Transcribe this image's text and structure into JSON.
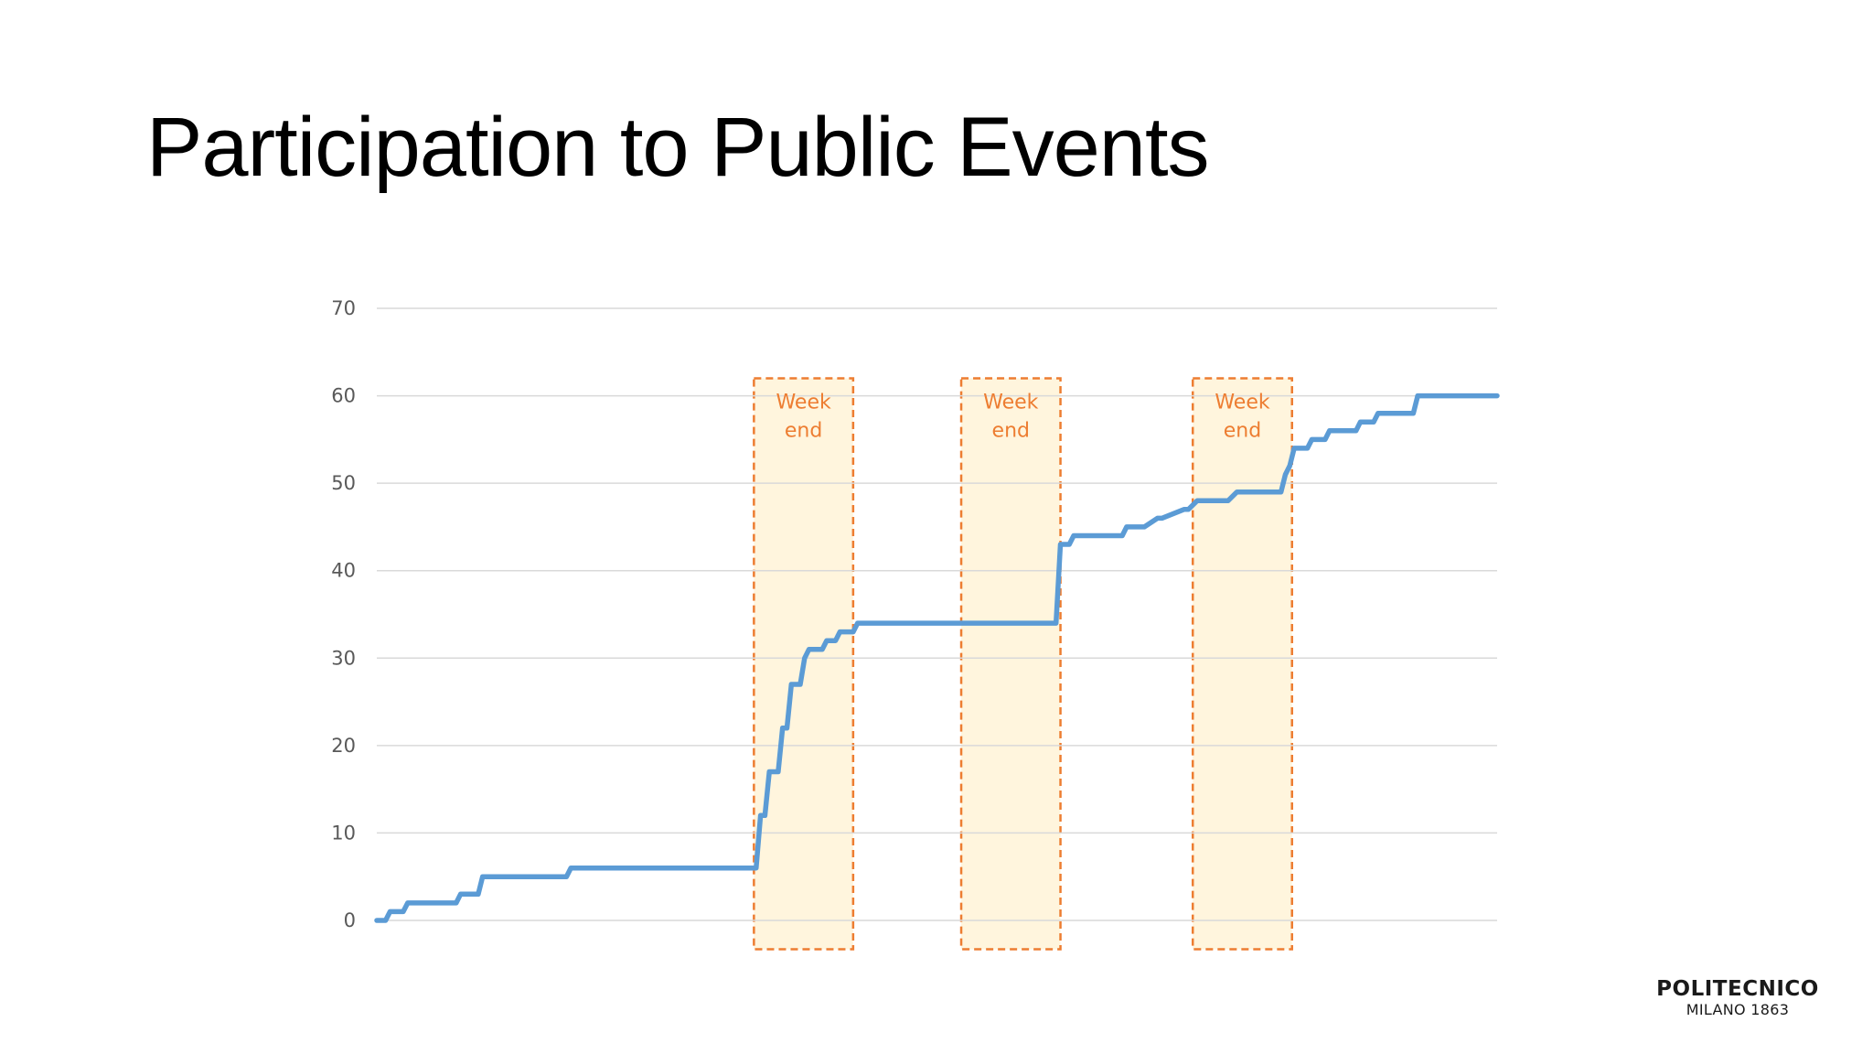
{
  "slide": {
    "title": "Participation to Public Events"
  },
  "logo": {
    "name": "POLITECNICO",
    "subtitle": "MILANO 1863"
  },
  "chart_data": {
    "type": "line",
    "title": "",
    "xlabel": "",
    "ylabel": "",
    "ylim": [
      0,
      70
    ],
    "yticks": [
      "0",
      "10",
      "20",
      "30",
      "40",
      "50",
      "60",
      "70"
    ],
    "grid": true,
    "legend": "none",
    "line_color": "#5B9BD5",
    "grid_color": "#D9D9D9",
    "band_color": "#ED7D31",
    "band_fill": "#FFF5DD",
    "xlim": [
      0,
      254
    ],
    "series": [
      {
        "x": [
          0,
          2,
          3,
          6,
          7,
          18,
          19,
          20,
          23,
          24,
          25,
          43,
          44,
          45,
          86,
          87,
          88,
          89,
          90,
          91,
          92,
          93,
          94,
          95,
          96,
          97,
          98,
          99,
          100,
          101,
          102,
          104,
          105,
          108,
          109,
          113,
          114,
          119,
          120,
          125,
          154,
          155,
          156,
          157,
          158,
          159,
          169,
          170,
          173,
          174,
          177,
          178,
          183,
          184,
          186,
          188,
          192,
          193,
          195,
          197,
          205,
          206,
          207,
          208,
          209,
          211,
          212,
          215,
          216,
          222,
          223,
          226,
          227,
          228,
          235,
          236,
          254
        ],
        "y": [
          0,
          0,
          1,
          1,
          2,
          2,
          3,
          3,
          3,
          5,
          5,
          5,
          6,
          6,
          6,
          12,
          12,
          17,
          17,
          17,
          22,
          22,
          27,
          27,
          27,
          30,
          31,
          31,
          31,
          31,
          32,
          32,
          33,
          33,
          34,
          34,
          34,
          34,
          34,
          34,
          34,
          43,
          43,
          43,
          44,
          44,
          44,
          45,
          45,
          45,
          46,
          46,
          47,
          47,
          48,
          48,
          48,
          48,
          49,
          49,
          49,
          51,
          52,
          54,
          54,
          54,
          55,
          55,
          56,
          56,
          57,
          57,
          58,
          58,
          58,
          60,
          60
        ]
      }
    ],
    "bands": [
      {
        "label_line1": "Week",
        "label_line2": "end",
        "x_start": 85.5,
        "x_end": 108,
        "y_top": 62,
        "y_bottom": -3.3
      },
      {
        "label_line1": "Week",
        "label_line2": "end",
        "x_start": 132.5,
        "x_end": 155,
        "y_top": 62,
        "y_bottom": -3.3
      },
      {
        "label_line1": "Week",
        "label_line2": "end",
        "x_start": 185,
        "x_end": 207.5,
        "y_top": 62,
        "y_bottom": -3.3
      }
    ]
  }
}
